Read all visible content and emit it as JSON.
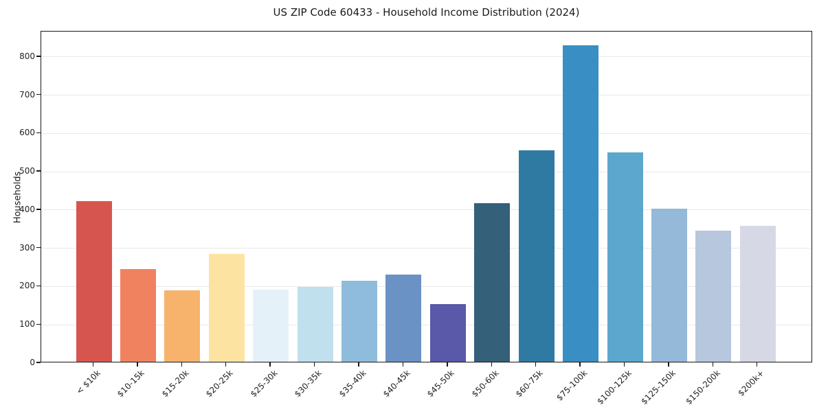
{
  "chart_data": {
    "type": "bar",
    "title": "US ZIP Code 60433 - Household Income Distribution (2024)",
    "xlabel": "",
    "ylabel": "Households",
    "categories": [
      "< $10k",
      "$10-15k",
      "$15-20k",
      "$20-25k",
      "$25-30k",
      "$30-35k",
      "$35-40k",
      "$40-45k",
      "$45-50k",
      "$50-60k",
      "$60-75k",
      "$75-100k",
      "$100-125k",
      "$125-150k",
      "$150-200k",
      "$200k+"
    ],
    "values": [
      420,
      242,
      186,
      281,
      188,
      196,
      212,
      228,
      150,
      414,
      552,
      827,
      547,
      399,
      342,
      355
    ],
    "bar_colors": [
      "#d6564f",
      "#f0825f",
      "#f7b26c",
      "#fce3a2",
      "#e4f1f8",
      "#c0e0ee",
      "#8fbcdc",
      "#6a92c5",
      "#5a58a8",
      "#34607a",
      "#2f7aa3",
      "#398ec4",
      "#5ca7cd",
      "#95b9d8",
      "#b7c7de",
      "#d6d8e6"
    ],
    "yticks": [
      0,
      100,
      200,
      300,
      400,
      500,
      600,
      700,
      800
    ],
    "ylim": [
      0,
      866
    ],
    "grid": "horizontal",
    "gridline_color": "#e9e9e9",
    "spine_color": "#161616",
    "background_color": "#ffffff",
    "xtick_rotation_deg": 45,
    "legend": "none"
  }
}
